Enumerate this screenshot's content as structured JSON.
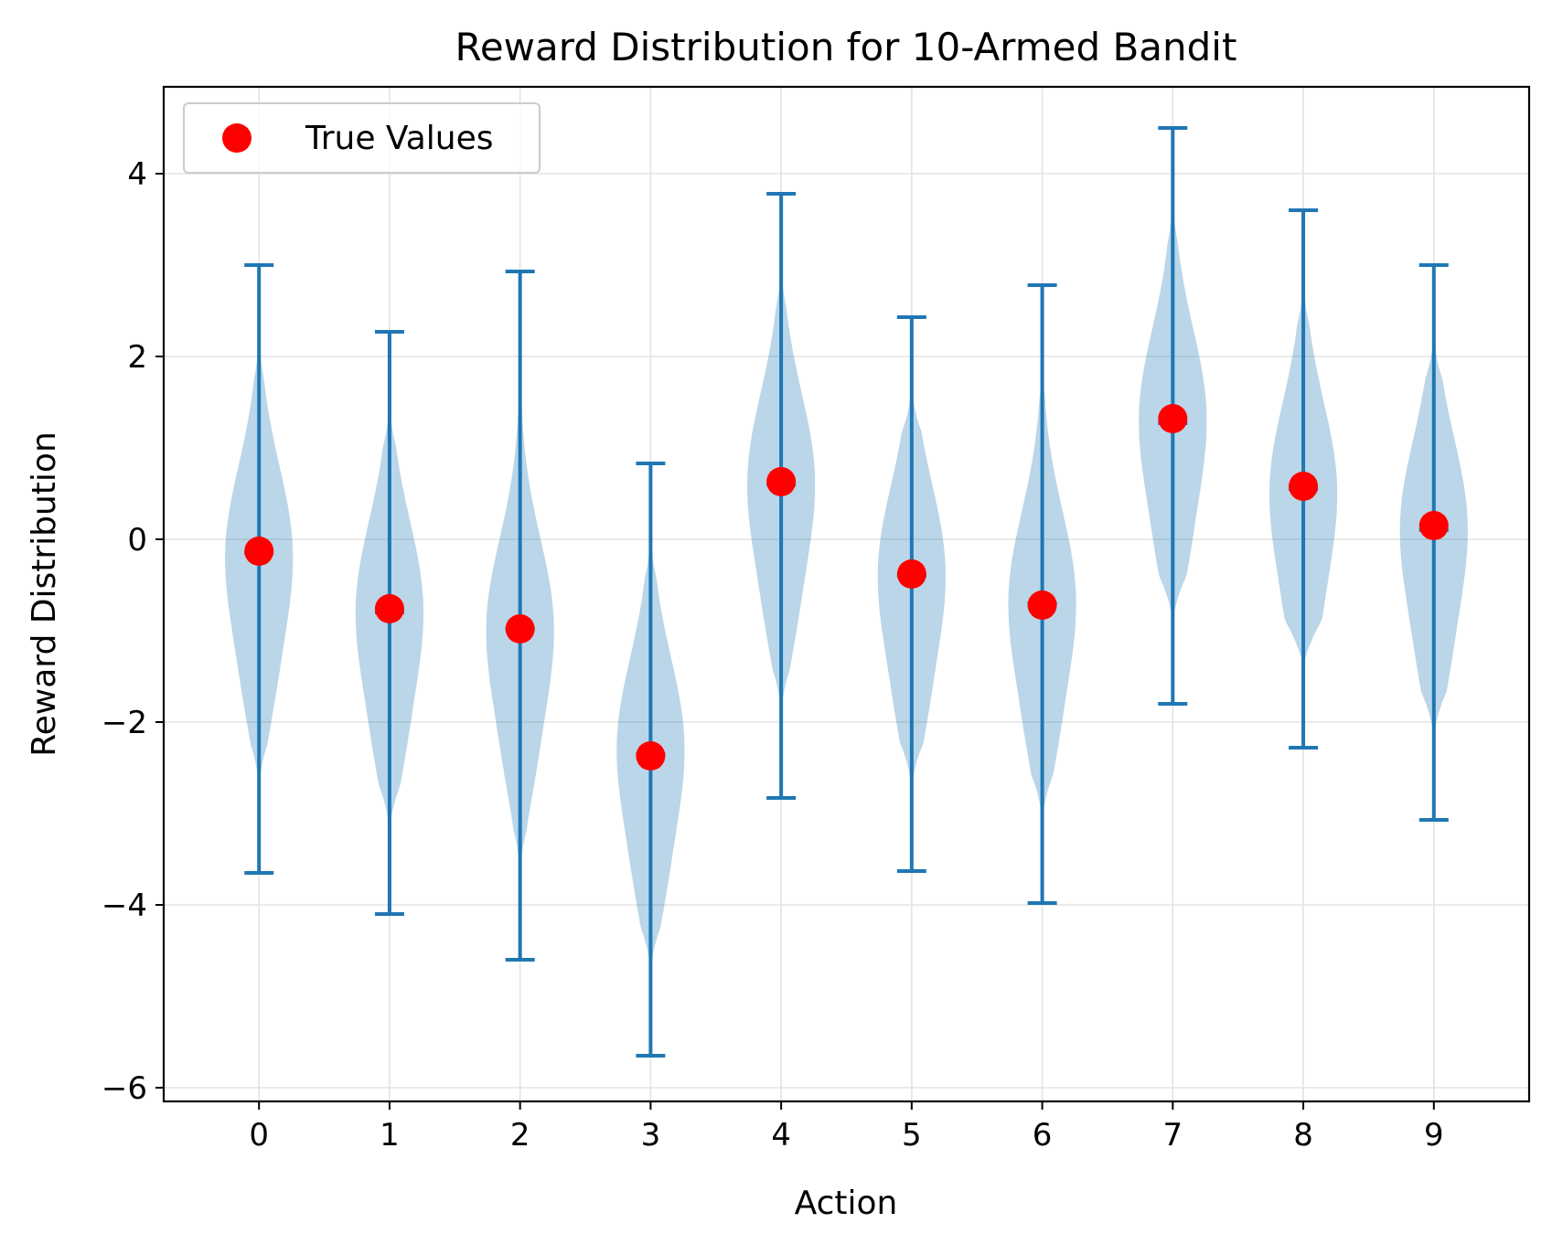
{
  "chart_data": {
    "type": "violin",
    "title": "Reward Distribution for 10-Armed Bandit",
    "xlabel": "Action",
    "ylabel": "Reward Distribution",
    "categories": [
      "0",
      "1",
      "2",
      "3",
      "4",
      "5",
      "6",
      "7",
      "8",
      "9"
    ],
    "ylim": [
      -6.15,
      4.95
    ],
    "yticks": [
      -6,
      -4,
      -2,
      0,
      2,
      4
    ],
    "ytick_labels": [
      "−6",
      "−4",
      "−2",
      "0",
      "2",
      "4"
    ],
    "grid": true,
    "legend": {
      "location": "top-left",
      "entries": [
        "True Values"
      ]
    },
    "violins": [
      {
        "action": 0,
        "min": -3.65,
        "max": 3.0,
        "mean": -0.15,
        "peak": -0.2
      },
      {
        "action": 1,
        "min": -4.1,
        "max": 2.27,
        "mean": -0.8,
        "peak": -0.8
      },
      {
        "action": 2,
        "min": -4.6,
        "max": 2.93,
        "mean": -0.98,
        "peak": -1.0
      },
      {
        "action": 3,
        "min": -5.65,
        "max": 0.83,
        "mean": -2.35,
        "peak": -2.3
      },
      {
        "action": 4,
        "min": -2.83,
        "max": 3.78,
        "mean": 0.6,
        "peak": 0.6
      },
      {
        "action": 5,
        "min": -3.63,
        "max": 2.43,
        "mean": -0.4,
        "peak": -0.4
      },
      {
        "action": 6,
        "min": -3.98,
        "max": 2.78,
        "mean": -0.7,
        "peak": -0.7
      },
      {
        "action": 7,
        "min": -1.8,
        "max": 4.5,
        "mean": 1.27,
        "peak": 1.3
      },
      {
        "action": 8,
        "min": -2.28,
        "max": 3.6,
        "mean": 0.55,
        "peak": 0.5
      },
      {
        "action": 9,
        "min": -3.07,
        "max": 3.0,
        "mean": 0.1,
        "peak": 0.1
      }
    ],
    "true_values": [
      -0.13,
      -0.76,
      -0.98,
      -2.37,
      0.63,
      -0.38,
      -0.72,
      1.32,
      0.58,
      0.15
    ],
    "colors": {
      "violin_fill": "#1f77b4",
      "violin_fill_opacity": 0.3,
      "line": "#1f77b4",
      "true_value_marker": "#ff0000",
      "grid": "#e3e3e3"
    }
  }
}
